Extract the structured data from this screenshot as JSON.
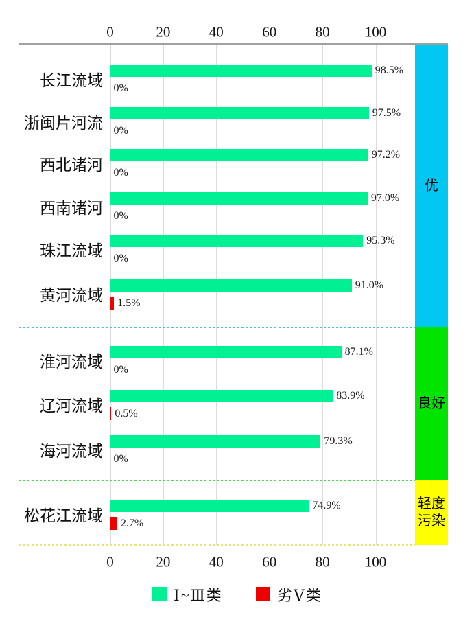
{
  "chart_data": {
    "type": "bar",
    "orientation": "horizontal",
    "title": "",
    "xlabel": "",
    "ylabel": "",
    "xlim": [
      0,
      100
    ],
    "grid": true,
    "x_ticks": [
      "0",
      "20",
      "40",
      "60",
      "80",
      "100"
    ],
    "x_tick_values": [
      0,
      20,
      40,
      60,
      80,
      100
    ],
    "series": [
      {
        "name": "Ⅰ~Ⅲ类",
        "color": "#00F193"
      },
      {
        "name": "劣Ⅴ类",
        "color": "#ED0000"
      }
    ],
    "rows": [
      {
        "basin": "长江流域",
        "good": 98.5,
        "good_label": "98.5%",
        "bad": 0,
        "bad_label": "0%",
        "grade": "优"
      },
      {
        "basin": "浙闽片河流",
        "good": 97.5,
        "good_label": "97.5%",
        "bad": 0,
        "bad_label": "0%",
        "grade": "优"
      },
      {
        "basin": "西北诸河",
        "good": 97.2,
        "good_label": "97.2%",
        "bad": 0,
        "bad_label": "0%",
        "grade": "优"
      },
      {
        "basin": "西南诸河",
        "good": 97.0,
        "good_label": "97.0%",
        "bad": 0,
        "bad_label": "0%",
        "grade": "优"
      },
      {
        "basin": "珠江流域",
        "good": 95.3,
        "good_label": "95.3%",
        "bad": 0,
        "bad_label": "0%",
        "grade": "优"
      },
      {
        "basin": "黄河流域",
        "good": 91.0,
        "good_label": "91.0%",
        "bad": 1.5,
        "bad_label": "1.5%",
        "grade": "优"
      },
      {
        "basin": "淮河流域",
        "good": 87.1,
        "good_label": "87.1%",
        "bad": 0,
        "bad_label": "0%",
        "grade": "良好"
      },
      {
        "basin": "辽河流域",
        "good": 83.9,
        "good_label": "83.9%",
        "bad": 0.5,
        "bad_label": "0.5%",
        "grade": "良好"
      },
      {
        "basin": "海河流域",
        "good": 79.3,
        "good_label": "79.3%",
        "bad": 0,
        "bad_label": "0%",
        "grade": "良好"
      },
      {
        "basin": "松花江流域",
        "good": 74.9,
        "good_label": "74.9%",
        "bad": 2.7,
        "bad_label": "2.7%",
        "grade": "轻度污染"
      }
    ],
    "sections": [
      {
        "label": "优",
        "band_color": "#00C8F2",
        "divider_color": "#45BCEC"
      },
      {
        "label": "良好",
        "band_color": "#00E400",
        "divider_color": "#4ADB4A"
      },
      {
        "label": "轻度污染",
        "band_color": "#FFFF00",
        "divider_color": "#E6E673"
      }
    ],
    "legend": [
      {
        "label": "Ⅰ~Ⅲ类",
        "color": "#00F193"
      },
      {
        "label": "劣Ⅴ类",
        "color": "#ED0000"
      }
    ],
    "colors": {
      "good_bar": "#00F193",
      "bad_bar": "#ED0000"
    }
  }
}
